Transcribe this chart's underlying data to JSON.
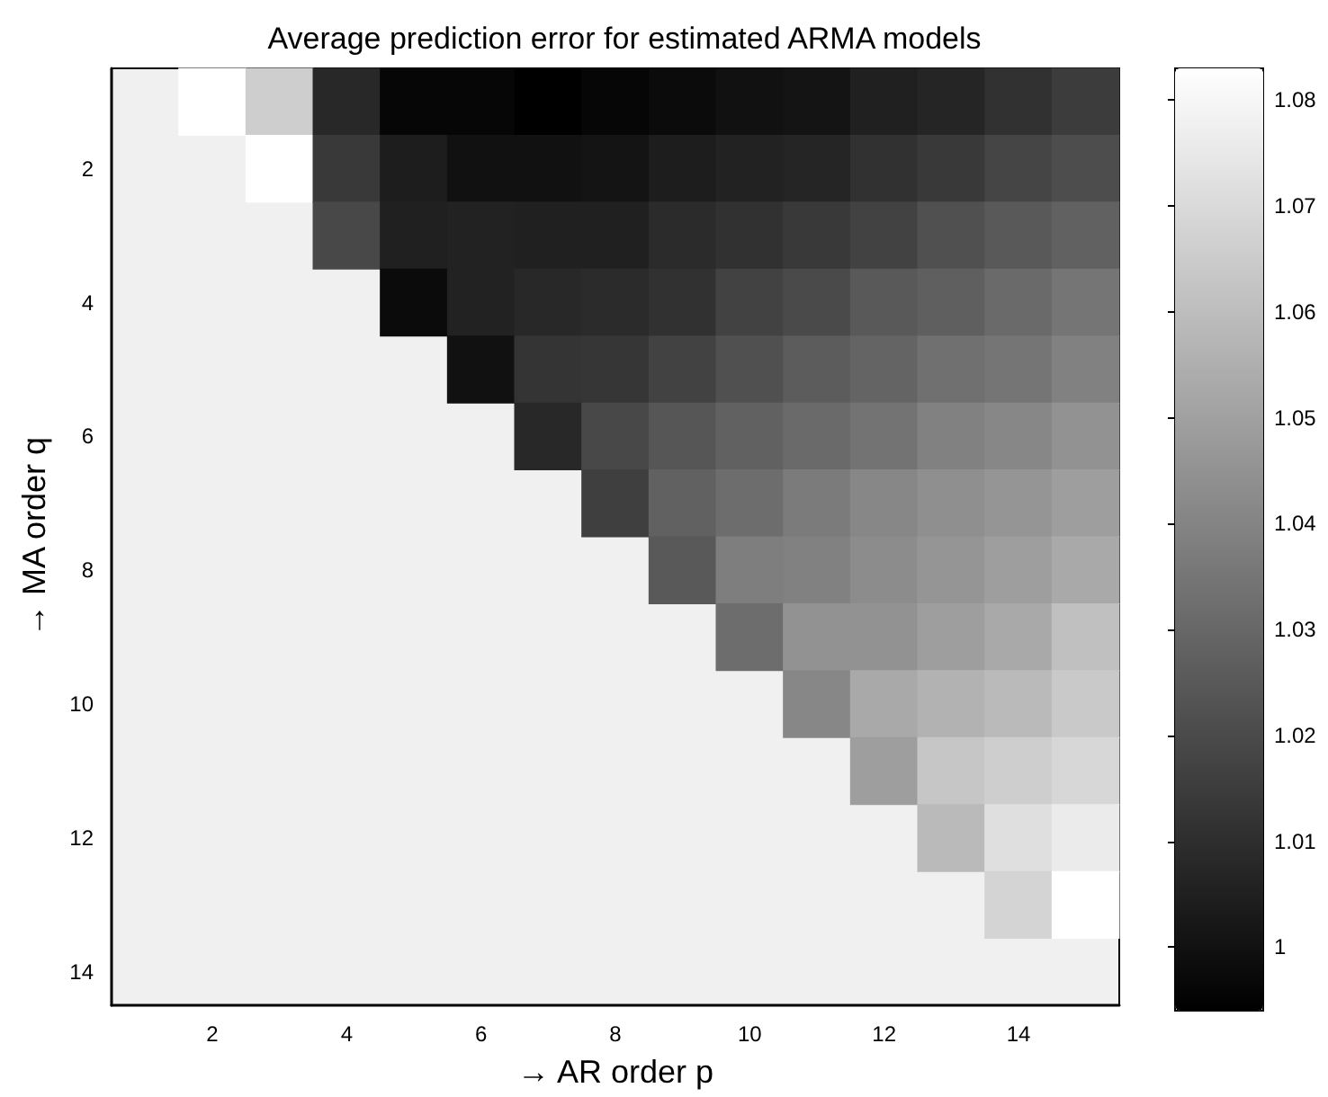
{
  "chart_data": {
    "type": "heatmap",
    "title": "Average prediction error for estimated ARMA models",
    "xlabel": "→ AR order p",
    "ylabel": "→ MA order q",
    "categories": [
      null,
      "2",
      null,
      "4",
      null,
      "6",
      null,
      "8",
      null,
      "10",
      null,
      "12",
      null,
      "14",
      null
    ],
    "y_categories": [
      null,
      "2",
      null,
      "4",
      null,
      "6",
      null,
      "8",
      null,
      "10",
      null,
      "12",
      null,
      "14"
    ],
    "cells": [
      [
        null,
        1.083,
        1.066,
        1.008,
        0.996,
        0.996,
        0.994,
        0.996,
        0.998,
        1.0,
        1.001,
        1.005,
        1.007,
        1.011,
        1.015
      ],
      [
        null,
        null,
        1.083,
        1.014,
        1.004,
        1.0,
        1.0,
        1.001,
        1.004,
        1.006,
        1.007,
        1.011,
        1.014,
        1.018,
        1.021
      ],
      [
        null,
        null,
        null,
        1.019,
        1.005,
        1.006,
        1.005,
        1.005,
        1.009,
        1.011,
        1.014,
        1.017,
        1.022,
        1.025,
        1.028
      ],
      [
        null,
        null,
        null,
        null,
        0.998,
        1.006,
        1.008,
        1.009,
        1.011,
        1.017,
        1.02,
        1.025,
        1.027,
        1.031,
        1.035
      ],
      [
        null,
        null,
        null,
        null,
        null,
        1.0,
        1.012,
        1.013,
        1.017,
        1.022,
        1.026,
        1.029,
        1.033,
        1.035,
        1.039
      ],
      [
        null,
        null,
        null,
        null,
        null,
        null,
        1.008,
        1.019,
        1.024,
        1.028,
        1.031,
        1.034,
        1.039,
        1.041,
        1.045
      ],
      [
        null,
        null,
        null,
        null,
        null,
        null,
        null,
        1.016,
        1.028,
        1.032,
        1.037,
        1.041,
        1.044,
        1.046,
        1.049
      ],
      [
        null,
        null,
        null,
        null,
        null,
        null,
        null,
        null,
        1.025,
        1.038,
        1.039,
        1.043,
        1.046,
        1.049,
        1.053
      ],
      [
        null,
        null,
        null,
        null,
        null,
        null,
        null,
        null,
        null,
        1.032,
        1.045,
        1.045,
        1.049,
        1.053,
        1.061
      ],
      [
        null,
        null,
        null,
        null,
        null,
        null,
        null,
        null,
        null,
        null,
        1.041,
        1.053,
        1.056,
        1.059,
        1.064
      ],
      [
        null,
        null,
        null,
        null,
        null,
        null,
        null,
        null,
        null,
        null,
        null,
        1.049,
        1.063,
        1.066,
        1.069
      ],
      [
        null,
        null,
        null,
        null,
        null,
        null,
        null,
        null,
        null,
        null,
        null,
        null,
        1.059,
        1.072,
        1.076
      ],
      [
        null,
        null,
        null,
        null,
        null,
        null,
        null,
        null,
        null,
        null,
        null,
        null,
        null,
        1.068,
        1.083
      ],
      [
        null,
        null,
        null,
        null,
        null,
        null,
        null,
        null,
        null,
        null,
        null,
        null,
        null,
        null,
        null
      ]
    ],
    "clim": [
      0.994,
      1.083
    ],
    "cticks": [
      1,
      1.01,
      1.02,
      1.03,
      1.04,
      1.05,
      1.06,
      1.07,
      1.08
    ]
  }
}
